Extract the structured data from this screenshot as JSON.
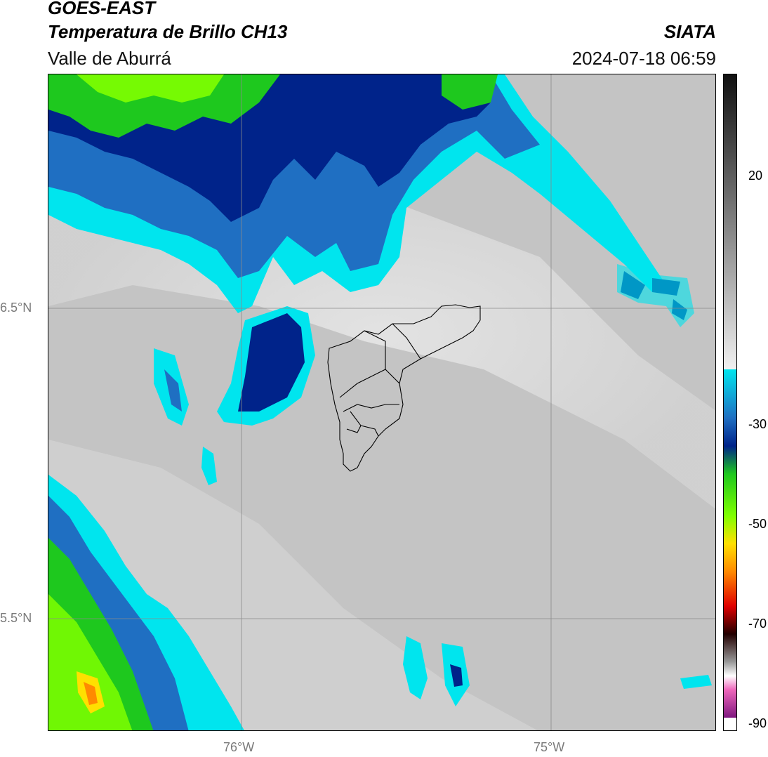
{
  "header": {
    "satellite": "GOES-EAST",
    "product": "Temperatura de Brillo CH13",
    "region": "Valle de Aburrá",
    "organization": "SIATA",
    "timestamp": "2024-07-18 06:59"
  },
  "map": {
    "lat_labels": [
      "6.5°N",
      "5.5°N"
    ],
    "lon_labels": [
      "76°W",
      "75°W"
    ]
  },
  "colorbar": {
    "tick_labels": [
      "20",
      "-30",
      "-50",
      "-70",
      "-90"
    ],
    "palette": {
      "gray": "#c8c8c8",
      "cyan": "#00e5ee",
      "blue": "#1f6fc2",
      "navy": "#00238a",
      "green": "#1ec81e",
      "lime": "#7fff00",
      "yellow": "#ffe000",
      "orange": "#ff8a00",
      "red": "#e00000",
      "magenta": "#cc33aa"
    }
  }
}
